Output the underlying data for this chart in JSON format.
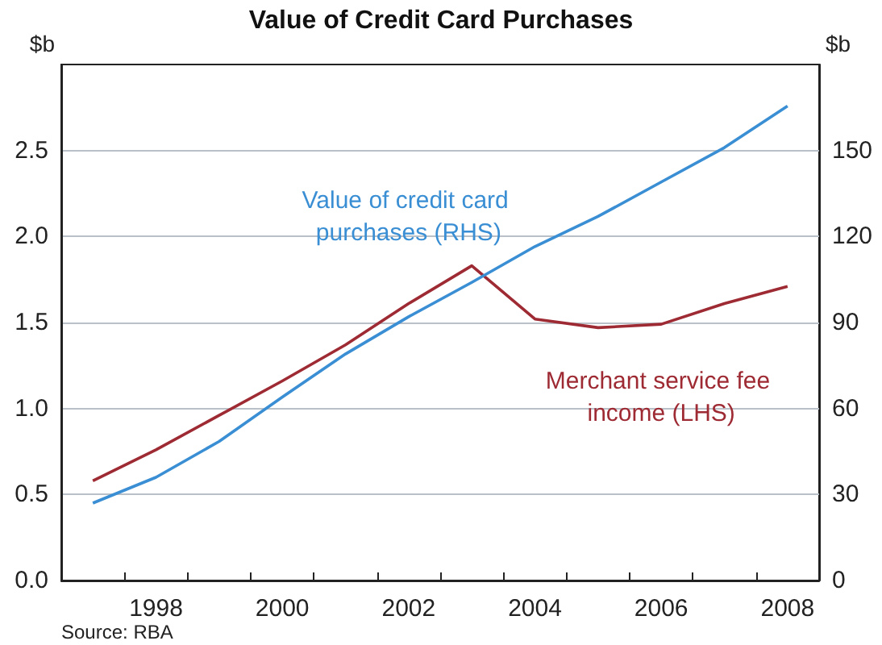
{
  "chart_data": {
    "type": "line",
    "title": "Value of Credit Card Purchases",
    "categories": [
      null,
      "1998",
      null,
      "2000",
      null,
      "2002",
      null,
      "2004",
      null,
      "2006",
      null,
      "2008"
    ],
    "series": [
      {
        "name": "Merchant service fee income (LHS)",
        "color": "#9e2a33",
        "values": [
          0.58,
          0.76,
          0.96,
          1.16,
          1.37,
          1.61,
          1.83,
          1.52,
          1.47,
          1.49,
          1.61,
          1.71
        ]
      },
      {
        "name": "Value of credit card purchases (RHS)",
        "color": "#3a8ed3",
        "axis": "y2",
        "values": [
          27,
          36,
          48.5,
          64,
          79,
          92,
          104,
          116.5,
          127,
          139,
          151,
          165.5
        ]
      }
    ],
    "ylabel": "$b",
    "y2label": "$b",
    "ylim": [
      0,
      3
    ],
    "yticks": [
      {
        "value": 0,
        "label": "0.0"
      },
      {
        "value": 0.5,
        "label": "0.5"
      },
      {
        "value": 1,
        "label": "1.0"
      },
      {
        "value": 1.5,
        "label": "1.5"
      },
      {
        "value": 2,
        "label": "2.0"
      },
      {
        "value": 2.5,
        "label": "2.5"
      }
    ],
    "y2lim": [
      0,
      180
    ],
    "y2ticks": [
      0,
      30,
      60,
      90,
      120,
      150
    ],
    "grid": "y",
    "legend": false,
    "marker": "none",
    "line_style": "solid",
    "annotations": [
      "Source: RBA"
    ]
  }
}
